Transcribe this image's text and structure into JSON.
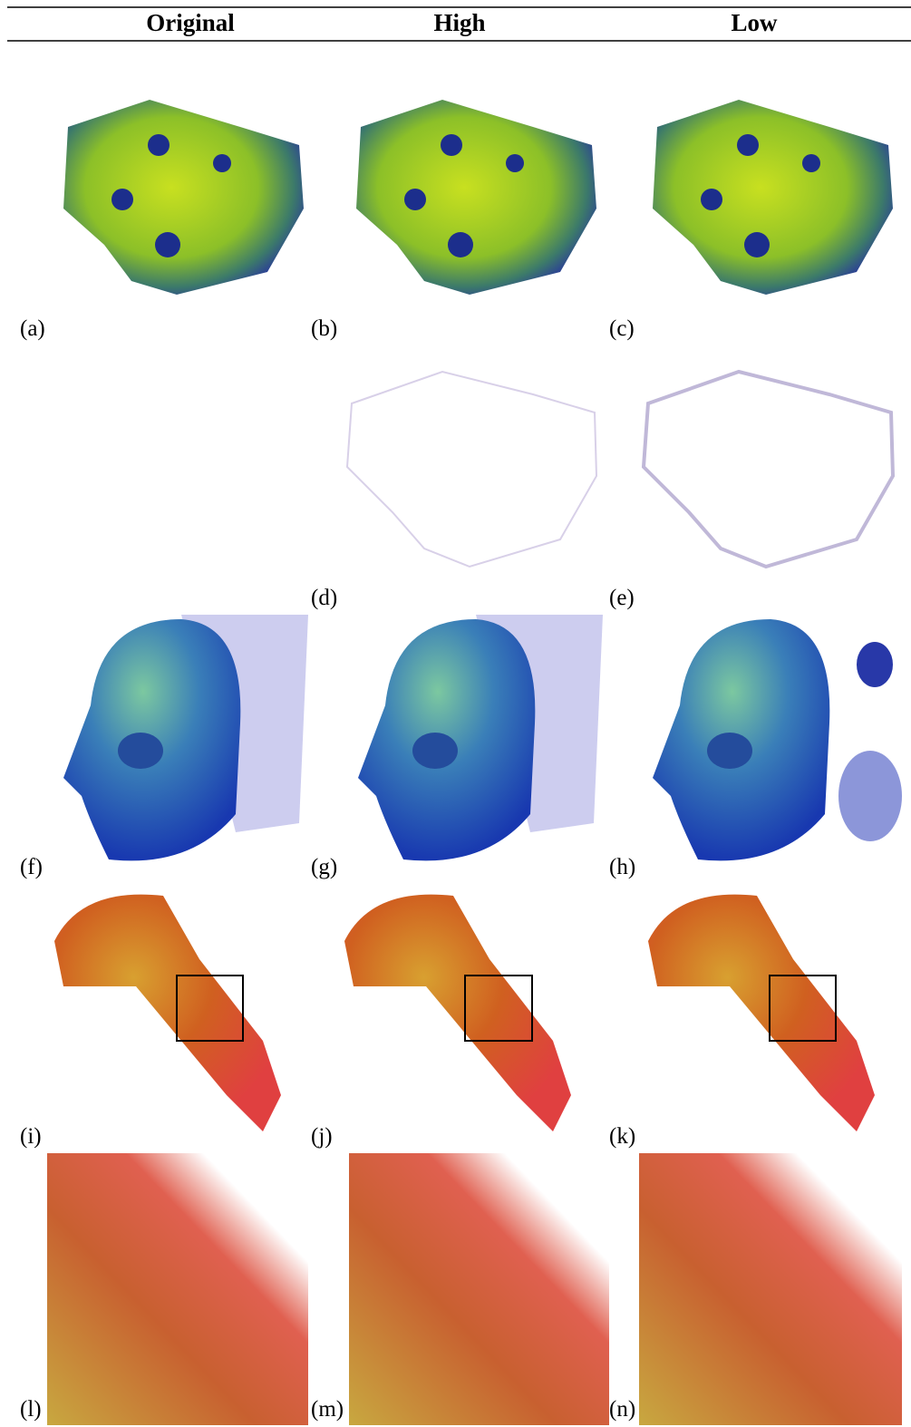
{
  "header": {
    "columns": [
      "Original",
      "High",
      "Low"
    ]
  },
  "panels": [
    {
      "label": "(a)"
    },
    {
      "label": "(b)"
    },
    {
      "label": "(c)"
    },
    {
      "label": "(d)"
    },
    {
      "label": "(e)"
    },
    {
      "label": "(f)"
    },
    {
      "label": "(g)"
    },
    {
      "label": "(h)"
    },
    {
      "label": "(i)"
    },
    {
      "label": "(j)"
    },
    {
      "label": "(k)"
    },
    {
      "label": "(l)"
    },
    {
      "label": "(m)"
    },
    {
      "label": "(n)"
    }
  ]
}
